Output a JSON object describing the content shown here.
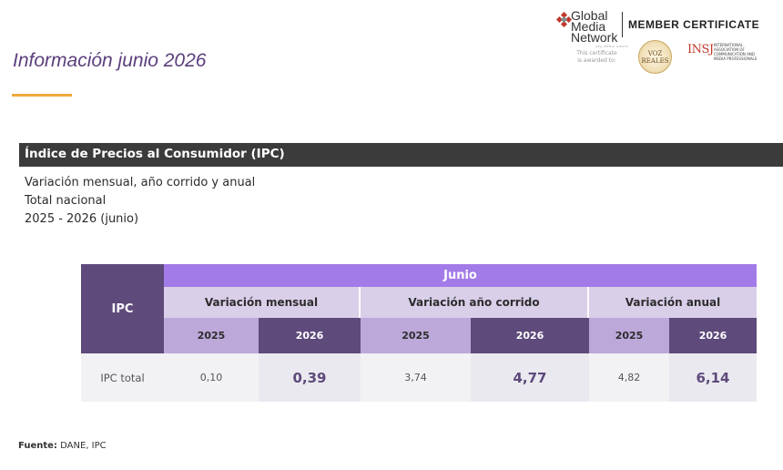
{
  "page": {
    "title": "Información junio 2026",
    "accent_color": "#f2a83e",
    "title_color": "#5c3f7d"
  },
  "certificate": {
    "logo_lines": [
      "Global",
      "Media",
      "Network"
    ],
    "logo_subtext": "INSJ MEDIA GROUP",
    "note_lines": [
      "This certificate",
      "is awarded to:"
    ],
    "heading": "MEMBER CERTIFICATE",
    "seal_lines": [
      "VOZ",
      "REALES"
    ],
    "insj_mark": "INSJ",
    "insj_desc": "International Association of Communication and Media Professionals"
  },
  "section": {
    "title": "Índice de Precios al Consumidor (IPC)",
    "lines": [
      "Variación mensual, año corrido y anual",
      "Total nacional",
      "2025 - 2026 (junio)"
    ]
  },
  "table": {
    "row_header": "IPC",
    "period": "Junio",
    "groups": [
      "Variación mensual",
      "Variación año corrido",
      "Variación anual"
    ],
    "years": [
      "2025",
      "2026",
      "2025",
      "2026",
      "2025",
      "2026"
    ],
    "rows": [
      {
        "label": "IPC total",
        "values": [
          "0,10",
          "0,39",
          "3,74",
          "4,77",
          "4,82",
          "6,14"
        ]
      }
    ],
    "colors": {
      "dark": "#5e4a7b",
      "accent": "#a37be8",
      "light": "#d9cfe9",
      "mid": "#bda8da"
    }
  },
  "source": {
    "label": "Fuente:",
    "text": "DANE, IPC"
  }
}
